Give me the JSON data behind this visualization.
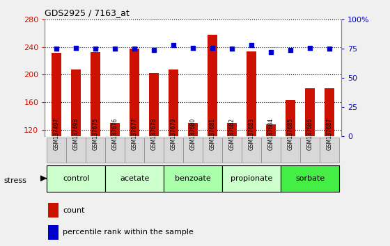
{
  "title": "GDS2925 / 7163_at",
  "samples": [
    "GSM137497",
    "GSM137498",
    "GSM137675",
    "GSM137676",
    "GSM137677",
    "GSM137678",
    "GSM137679",
    "GSM137680",
    "GSM137681",
    "GSM137682",
    "GSM137683",
    "GSM137684",
    "GSM137685",
    "GSM137686",
    "GSM137687"
  ],
  "counts": [
    232,
    208,
    233,
    130,
    238,
    202,
    208,
    130,
    258,
    130,
    234,
    128,
    163,
    180,
    180
  ],
  "percentiles": [
    75,
    76,
    75,
    75,
    75,
    74,
    78,
    76,
    76,
    75,
    78,
    72,
    74,
    76,
    75
  ],
  "ylim_left": [
    110,
    280
  ],
  "ylim_right": [
    0,
    100
  ],
  "yticks_left": [
    120,
    160,
    200,
    240,
    280
  ],
  "yticks_right": [
    0,
    25,
    50,
    75,
    100
  ],
  "bar_color": "#cc1100",
  "dot_color": "#0000cc",
  "groups": [
    {
      "label": "control",
      "start": 0,
      "end": 2,
      "color": "#ccffcc"
    },
    {
      "label": "acetate",
      "start": 3,
      "end": 5,
      "color": "#ccffcc"
    },
    {
      "label": "benzoate",
      "start": 6,
      "end": 8,
      "color": "#aaffaa"
    },
    {
      "label": "propionate",
      "start": 9,
      "end": 11,
      "color": "#ccffcc"
    },
    {
      "label": "sorbate",
      "start": 12,
      "end": 14,
      "color": "#44ee44"
    }
  ],
  "stress_label": "stress",
  "legend_count_label": "count",
  "legend_pct_label": "percentile rank within the sample",
  "bar_bottom": 110,
  "bar_width": 0.5,
  "xlim": [
    -0.6,
    14.6
  ],
  "sample_box_color": "#d8d8d8",
  "sample_box_edge": "#888888",
  "fig_bg": "#f0f0f0"
}
